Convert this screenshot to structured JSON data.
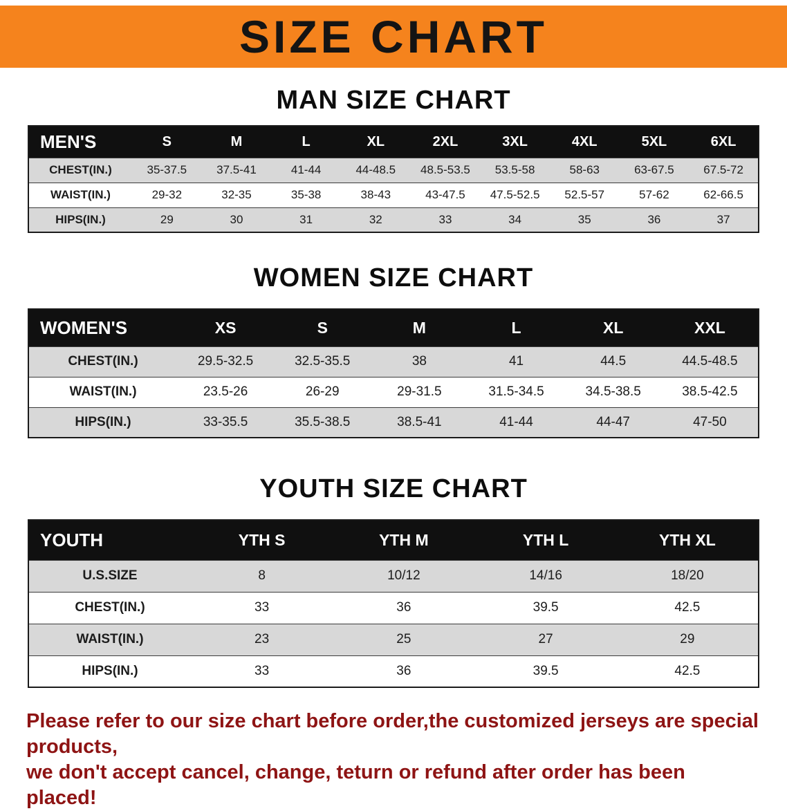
{
  "banner": {
    "title": "SIZE CHART"
  },
  "colors": {
    "banner_bg": "#F5831D",
    "table_header_bg": "#101010",
    "row_alt": "#d8d8d8",
    "footer_text": "#8E1414"
  },
  "men": {
    "section_title": "MAN SIZE CHART",
    "header": [
      "MEN'S",
      "S",
      "M",
      "L",
      "XL",
      "2XL",
      "3XL",
      "4XL",
      "5XL",
      "6XL"
    ],
    "rows": [
      {
        "label": "CHEST(IN.)",
        "values": [
          "35-37.5",
          "37.5-41",
          "41-44",
          "44-48.5",
          "48.5-53.5",
          "53.5-58",
          "58-63",
          "63-67.5",
          "67.5-72"
        ]
      },
      {
        "label": "WAIST(IN.)",
        "values": [
          "29-32",
          "32-35",
          "35-38",
          "38-43",
          "43-47.5",
          "47.5-52.5",
          "52.5-57",
          "57-62",
          "62-66.5"
        ]
      },
      {
        "label": "HIPS(IN.)",
        "values": [
          "29",
          "30",
          "31",
          "32",
          "33",
          "34",
          "35",
          "36",
          "37"
        ]
      }
    ]
  },
  "women": {
    "section_title": "WOMEN SIZE CHART",
    "header": [
      "WOMEN'S",
      "XS",
      "S",
      "M",
      "L",
      "XL",
      "XXL"
    ],
    "rows": [
      {
        "label": "CHEST(IN.)",
        "values": [
          "29.5-32.5",
          "32.5-35.5",
          "38",
          "41",
          "44.5",
          "44.5-48.5"
        ]
      },
      {
        "label": "WAIST(IN.)",
        "values": [
          "23.5-26",
          "26-29",
          "29-31.5",
          "31.5-34.5",
          "34.5-38.5",
          "38.5-42.5"
        ]
      },
      {
        "label": "HIPS(IN.)",
        "values": [
          "33-35.5",
          "35.5-38.5",
          "38.5-41",
          "41-44",
          "44-47",
          "47-50"
        ]
      }
    ]
  },
  "youth": {
    "section_title": "YOUTH SIZE CHART",
    "header": [
      "YOUTH",
      "YTH S",
      "YTH M",
      "YTH L",
      "YTH XL"
    ],
    "rows": [
      {
        "label": "U.S.SIZE",
        "values": [
          "8",
          "10/12",
          "14/16",
          "18/20"
        ]
      },
      {
        "label": "CHEST(IN.)",
        "values": [
          "33",
          "36",
          "39.5",
          "42.5"
        ]
      },
      {
        "label": "WAIST(IN.)",
        "values": [
          "23",
          "25",
          "27",
          "29"
        ]
      },
      {
        "label": "HIPS(IN.)",
        "values": [
          "33",
          "36",
          "39.5",
          "42.5"
        ]
      }
    ]
  },
  "footer": {
    "line1": "Please refer to our size chart before order,the customized jerseys are special products,",
    "line2": "we don't accept cancel, change, teturn or refund after order has been placed!"
  }
}
